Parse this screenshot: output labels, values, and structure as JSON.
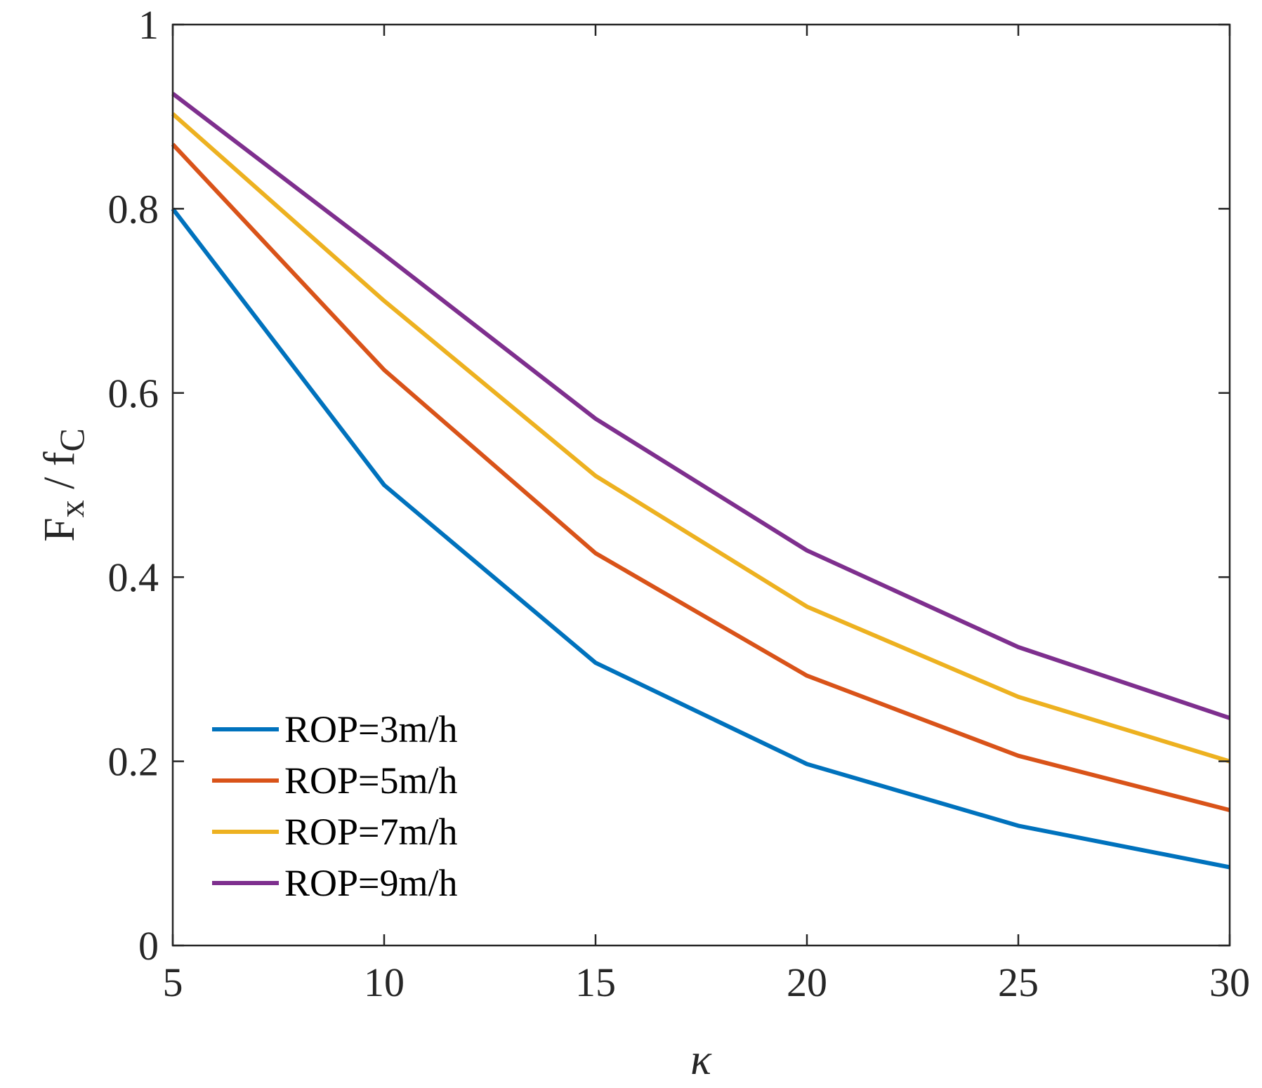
{
  "chart_data": {
    "type": "line",
    "title": "",
    "xlabel": "κ",
    "ylabel": {
      "base1": "F",
      "sub1": "x",
      "sep": " / ",
      "base2": "f",
      "sub2": "C"
    },
    "x": [
      5,
      10,
      15,
      20,
      25,
      30
    ],
    "xlim": [
      5,
      30
    ],
    "ylim": [
      0,
      1
    ],
    "xticks": [
      "5",
      "10",
      "15",
      "20",
      "25",
      "30"
    ],
    "yticks": [
      "0",
      "0.2",
      "0.4",
      "0.6",
      "0.8",
      "1"
    ],
    "grid": false,
    "legend_position": "bottom-left",
    "series": [
      {
        "name": "ROP=3m/h",
        "color": "#0072BD",
        "values": [
          0.8,
          0.5,
          0.307,
          0.197,
          0.13,
          0.085
        ]
      },
      {
        "name": "ROP=5m/h",
        "color": "#D95319",
        "values": [
          0.87,
          0.625,
          0.426,
          0.293,
          0.206,
          0.147
        ]
      },
      {
        "name": "ROP=7m/h",
        "color": "#EDB120",
        "values": [
          0.903,
          0.7,
          0.51,
          0.368,
          0.27,
          0.2
        ]
      },
      {
        "name": "ROP=9m/h",
        "color": "#7E2F8E",
        "values": [
          0.925,
          0.75,
          0.572,
          0.429,
          0.324,
          0.247
        ]
      }
    ]
  }
}
